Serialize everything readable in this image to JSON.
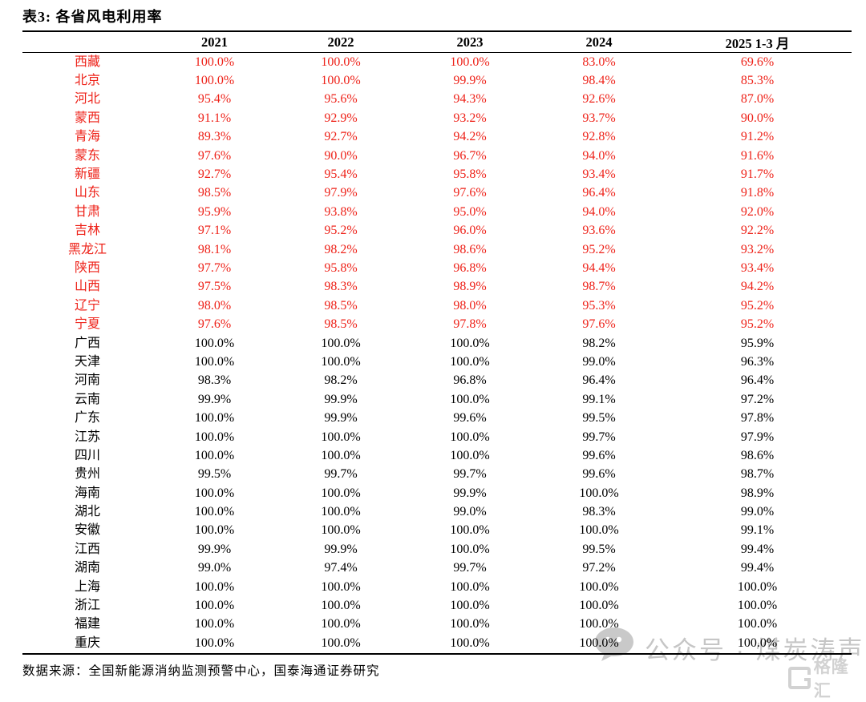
{
  "title": "表3:  各省风电利用率",
  "columns": [
    "",
    "2021",
    "2022",
    "2023",
    "2024",
    "2025 1-3 月"
  ],
  "rows": [
    {
      "province": "西藏",
      "red": true,
      "values": [
        "100.0%",
        "100.0%",
        "100.0%",
        "83.0%",
        "69.6%"
      ]
    },
    {
      "province": "北京",
      "red": true,
      "values": [
        "100.0%",
        "100.0%",
        "99.9%",
        "98.4%",
        "85.3%"
      ]
    },
    {
      "province": "河北",
      "red": true,
      "values": [
        "95.4%",
        "95.6%",
        "94.3%",
        "92.6%",
        "87.0%"
      ]
    },
    {
      "province": "蒙西",
      "red": true,
      "values": [
        "91.1%",
        "92.9%",
        "93.2%",
        "93.7%",
        "90.0%"
      ]
    },
    {
      "province": "青海",
      "red": true,
      "values": [
        "89.3%",
        "92.7%",
        "94.2%",
        "92.8%",
        "91.2%"
      ]
    },
    {
      "province": "蒙东",
      "red": true,
      "values": [
        "97.6%",
        "90.0%",
        "96.7%",
        "94.0%",
        "91.6%"
      ]
    },
    {
      "province": "新疆",
      "red": true,
      "values": [
        "92.7%",
        "95.4%",
        "95.8%",
        "93.4%",
        "91.7%"
      ]
    },
    {
      "province": "山东",
      "red": true,
      "values": [
        "98.5%",
        "97.9%",
        "97.6%",
        "96.4%",
        "91.8%"
      ]
    },
    {
      "province": "甘肃",
      "red": true,
      "values": [
        "95.9%",
        "93.8%",
        "95.0%",
        "94.0%",
        "92.0%"
      ]
    },
    {
      "province": "吉林",
      "red": true,
      "values": [
        "97.1%",
        "95.2%",
        "96.0%",
        "93.6%",
        "92.2%"
      ]
    },
    {
      "province": "黑龙江",
      "red": true,
      "values": [
        "98.1%",
        "98.2%",
        "98.6%",
        "95.2%",
        "93.2%"
      ]
    },
    {
      "province": "陕西",
      "red": true,
      "values": [
        "97.7%",
        "95.8%",
        "96.8%",
        "94.4%",
        "93.4%"
      ]
    },
    {
      "province": "山西",
      "red": true,
      "values": [
        "97.5%",
        "98.3%",
        "98.9%",
        "98.7%",
        "94.2%"
      ]
    },
    {
      "province": "辽宁",
      "red": true,
      "values": [
        "98.0%",
        "98.5%",
        "98.0%",
        "95.3%",
        "95.2%"
      ]
    },
    {
      "province": "宁夏",
      "red": true,
      "values": [
        "97.6%",
        "98.5%",
        "97.8%",
        "97.6%",
        "95.2%"
      ]
    },
    {
      "province": "广西",
      "red": false,
      "values": [
        "100.0%",
        "100.0%",
        "100.0%",
        "98.2%",
        "95.9%"
      ]
    },
    {
      "province": "天津",
      "red": false,
      "values": [
        "100.0%",
        "100.0%",
        "100.0%",
        "99.0%",
        "96.3%"
      ]
    },
    {
      "province": "河南",
      "red": false,
      "values": [
        "98.3%",
        "98.2%",
        "96.8%",
        "96.4%",
        "96.4%"
      ]
    },
    {
      "province": "云南",
      "red": false,
      "values": [
        "99.9%",
        "99.9%",
        "100.0%",
        "99.1%",
        "97.2%"
      ]
    },
    {
      "province": "广东",
      "red": false,
      "values": [
        "100.0%",
        "99.9%",
        "99.6%",
        "99.5%",
        "97.8%"
      ]
    },
    {
      "province": "江苏",
      "red": false,
      "values": [
        "100.0%",
        "100.0%",
        "100.0%",
        "99.7%",
        "97.9%"
      ]
    },
    {
      "province": "四川",
      "red": false,
      "values": [
        "100.0%",
        "100.0%",
        "100.0%",
        "99.6%",
        "98.6%"
      ]
    },
    {
      "province": "贵州",
      "red": false,
      "values": [
        "99.5%",
        "99.7%",
        "99.7%",
        "99.6%",
        "98.7%"
      ]
    },
    {
      "province": "海南",
      "red": false,
      "values": [
        "100.0%",
        "100.0%",
        "99.9%",
        "100.0%",
        "98.9%"
      ]
    },
    {
      "province": "湖北",
      "red": false,
      "values": [
        "100.0%",
        "100.0%",
        "99.0%",
        "98.3%",
        "99.0%"
      ]
    },
    {
      "province": "安徽",
      "red": false,
      "values": [
        "100.0%",
        "100.0%",
        "100.0%",
        "100.0%",
        "99.1%"
      ]
    },
    {
      "province": "江西",
      "red": false,
      "values": [
        "99.9%",
        "99.9%",
        "100.0%",
        "99.5%",
        "99.4%"
      ]
    },
    {
      "province": "湖南",
      "red": false,
      "values": [
        "99.0%",
        "97.4%",
        "99.7%",
        "97.2%",
        "99.4%"
      ]
    },
    {
      "province": "上海",
      "red": false,
      "values": [
        "100.0%",
        "100.0%",
        "100.0%",
        "100.0%",
        "100.0%"
      ]
    },
    {
      "province": "浙江",
      "red": false,
      "values": [
        "100.0%",
        "100.0%",
        "100.0%",
        "100.0%",
        "100.0%"
      ]
    },
    {
      "province": "福建",
      "red": false,
      "values": [
        "100.0%",
        "100.0%",
        "100.0%",
        "100.0%",
        "100.0%"
      ]
    },
    {
      "province": "重庆",
      "red": false,
      "values": [
        "100.0%",
        "100.0%",
        "100.0%",
        "100.0%",
        "100.0%"
      ]
    }
  ],
  "footer": {
    "text": "数据来源：全国新能源消纳监测预警中心，国泰海通证券研究"
  },
  "watermark": {
    "text": "公众号 · 煤炭涛声",
    "logo_text": "格隆汇"
  },
  "colors": {
    "highlight_red": "#ee2219",
    "text_black": "#000000",
    "watermark_gray": "#c6c6c6"
  }
}
